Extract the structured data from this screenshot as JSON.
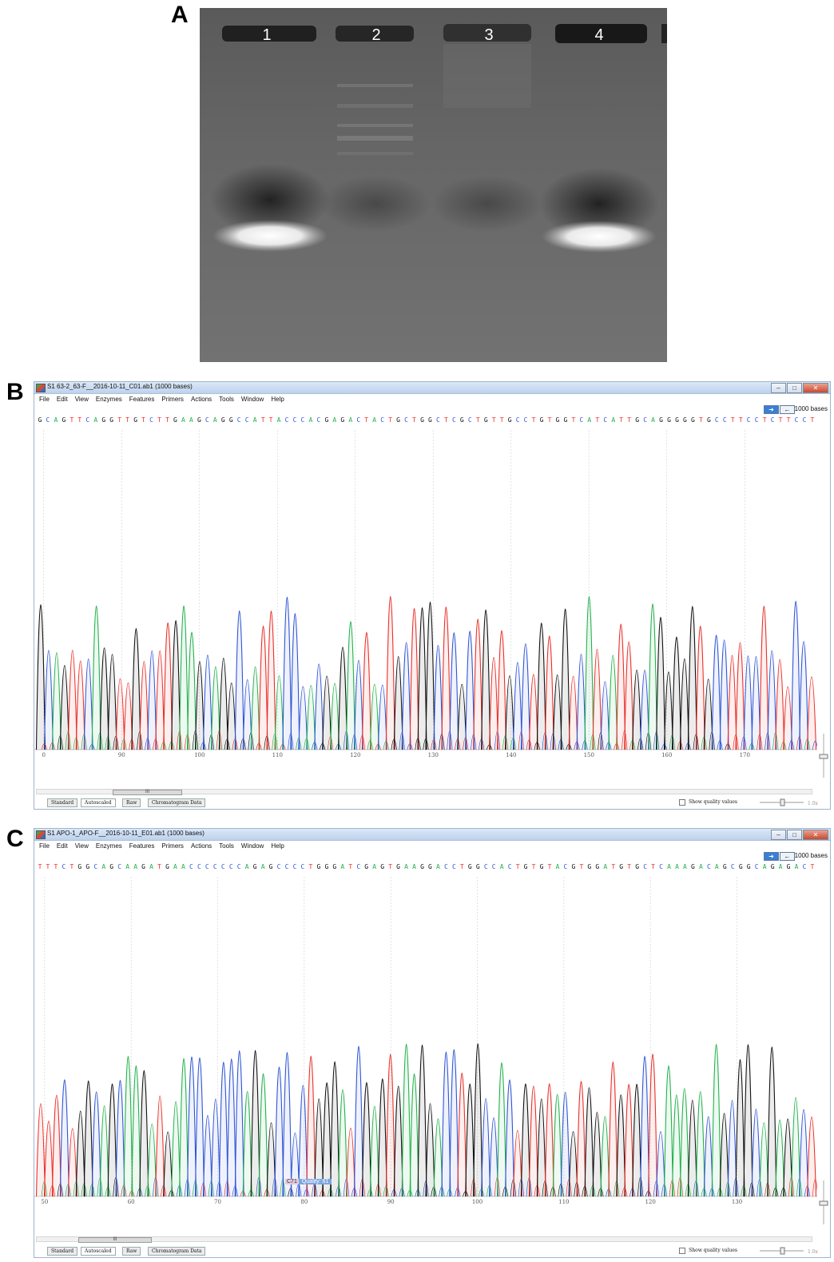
{
  "panel_a": {
    "label": "A",
    "lanes": [
      "1",
      "2",
      "3",
      "4"
    ]
  },
  "panel_b": {
    "label": "B",
    "window_title": "S1 63-2_63-F__2016-10-11_C01.ab1  (1000 bases)",
    "menu": [
      "File",
      "Edit",
      "View",
      "Enzymes",
      "Features",
      "Primers",
      "Actions",
      "Tools",
      "Window",
      "Help"
    ],
    "bases_count": "1000 bases",
    "sequence": "GCAGTTCAGGTTGTCTTGAAGCAGGCCATTACCCACGAGACTACTGCTGGCTCGCTGTTGCCTGTGGTCATCATTGCAGGGGGTGCCTTCCTCTTCCT",
    "axis_ticks": [
      "0",
      "90",
      "100",
      "110",
      "120",
      "130",
      "140",
      "150",
      "160",
      "170"
    ],
    "scroll_label": "III",
    "tabs": [
      "Standard",
      "Autoscaled",
      "Raw",
      "Chromatogram Data"
    ],
    "active_tab": "Autoscaled",
    "show_quality_label": "Show quality values",
    "zoom_label": "1.0x",
    "vzoom_label": "1.0x"
  },
  "panel_c": {
    "label": "C",
    "window_title": "S1 APO-1_APO-F__2016-10-11_E01.ab1  (1000 bases)",
    "menu": [
      "File",
      "Edit",
      "View",
      "Enzymes",
      "Features",
      "Primers",
      "Actions",
      "Tools",
      "Window",
      "Help"
    ],
    "bases_count": "1000 bases",
    "sequence": "TTTCTGGCAGCAAGATGAACCCCCCCAGAGCCCCTGGGATCGAGTGAAGGACCTGGCCACTGTGTACGTGGATGTGCTCAAAGACAGCGGCAGAGACT",
    "axis_ticks": [
      "50",
      "60",
      "70",
      "80",
      "90",
      "100",
      "110",
      "120",
      "130"
    ],
    "scroll_label": "III",
    "tabs": [
      "Standard",
      "Autoscaled",
      "Raw",
      "Chromatogram Data"
    ],
    "active_tab": "Autoscaled",
    "show_quality_label": "Show quality values",
    "zoom_label": "1.0x",
    "vzoom_label": "1.0x",
    "tooltip_base": "C71",
    "tooltip_quality": "Quality: 61"
  },
  "colors": {
    "A": "#22b14c",
    "C": "#2f55d4",
    "G": "#111111",
    "T": "#e8302a",
    "gel_bg": "#6c6c6c",
    "band": "#ffffff"
  }
}
